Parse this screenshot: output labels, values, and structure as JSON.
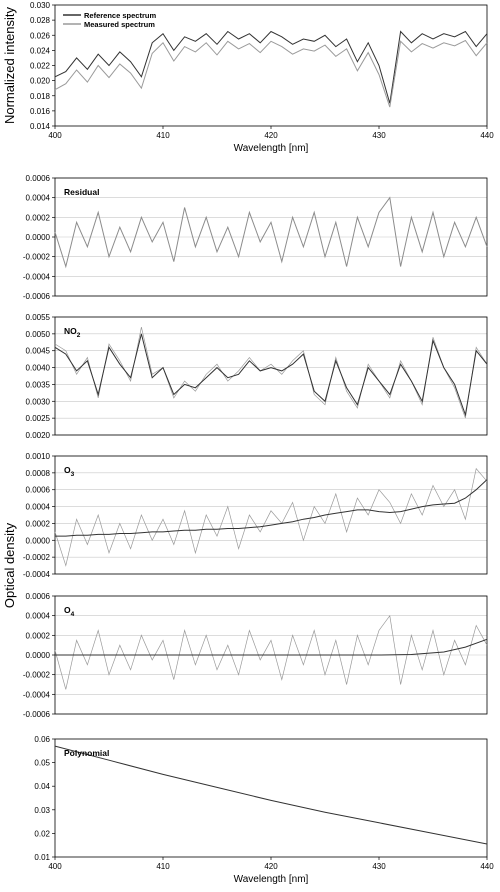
{
  "chart_data": [
    {
      "type": "line",
      "id": "intensity",
      "ylabel": "Normalized intensity",
      "xlabel": "Wavelength [nm]",
      "xlim": [
        400,
        440
      ],
      "ylim": [
        0.014,
        0.03
      ],
      "xticks": [
        400,
        410,
        420,
        430,
        440
      ],
      "xtick_labels": [
        "400",
        "410",
        "420",
        "430",
        "440"
      ],
      "yticks": [
        0.014,
        0.016,
        0.018,
        0.02,
        0.022,
        0.024,
        0.026,
        0.028,
        0.03
      ],
      "ytick_labels": [
        "0.014",
        "0.016",
        "0.018",
        "0.020",
        "0.022",
        "0.024",
        "0.026",
        "0.028",
        "0.030"
      ],
      "grid": false,
      "legend": "top-left",
      "series": [
        {
          "name": "Reference spectrum",
          "color": "#333333",
          "x": [
            400,
            401,
            402,
            403,
            404,
            405,
            406,
            407,
            408,
            409,
            410,
            411,
            412,
            413,
            414,
            415,
            416,
            417,
            418,
            419,
            420,
            421,
            422,
            423,
            424,
            425,
            426,
            427,
            428,
            429,
            430,
            431,
            432,
            433,
            434,
            435,
            436,
            437,
            438,
            439,
            440
          ],
          "y": [
            0.0205,
            0.0212,
            0.023,
            0.0215,
            0.0235,
            0.022,
            0.0238,
            0.0225,
            0.0205,
            0.025,
            0.0262,
            0.024,
            0.0258,
            0.0252,
            0.0262,
            0.0248,
            0.0265,
            0.0255,
            0.0262,
            0.025,
            0.0265,
            0.0258,
            0.0248,
            0.0255,
            0.0252,
            0.026,
            0.0245,
            0.0255,
            0.0225,
            0.025,
            0.022,
            0.017,
            0.0265,
            0.025,
            0.0262,
            0.0255,
            0.0262,
            0.0258,
            0.0265,
            0.0245,
            0.0262
          ]
        },
        {
          "name": "Measured spectrum",
          "color": "#9a9a9a",
          "x": [
            400,
            401,
            402,
            403,
            404,
            405,
            406,
            407,
            408,
            409,
            410,
            411,
            412,
            413,
            414,
            415,
            416,
            417,
            418,
            419,
            420,
            421,
            422,
            423,
            424,
            425,
            426,
            427,
            428,
            429,
            430,
            431,
            432,
            433,
            434,
            435,
            436,
            437,
            438,
            439,
            440
          ],
          "y": [
            0.0188,
            0.0196,
            0.0214,
            0.0198,
            0.022,
            0.0204,
            0.0222,
            0.021,
            0.019,
            0.0236,
            0.025,
            0.0226,
            0.0245,
            0.0238,
            0.025,
            0.0234,
            0.0252,
            0.0242,
            0.0249,
            0.0237,
            0.0252,
            0.0245,
            0.0235,
            0.0242,
            0.0239,
            0.0247,
            0.0232,
            0.0242,
            0.0213,
            0.0237,
            0.0208,
            0.0165,
            0.0252,
            0.0238,
            0.0249,
            0.0243,
            0.025,
            0.0246,
            0.0253,
            0.0233,
            0.025
          ]
        }
      ]
    },
    {
      "type": "line",
      "id": "residual",
      "annotation": "Residual",
      "xlim": [
        400,
        440
      ],
      "ylim": [
        -0.0006,
        0.0006
      ],
      "yticks": [
        -0.0006,
        -0.0004,
        -0.0002,
        0.0,
        0.0002,
        0.0004,
        0.0006
      ],
      "ytick_labels": [
        "-0.0006",
        "-0.0004",
        "-0.0002",
        "0.0000",
        "0.0002",
        "0.0004",
        "0.0006"
      ],
      "grid": true,
      "series": [
        {
          "color": "#8c8c8c",
          "x": [
            400,
            401,
            402,
            403,
            404,
            405,
            406,
            407,
            408,
            409,
            410,
            411,
            412,
            413,
            414,
            415,
            416,
            417,
            418,
            419,
            420,
            421,
            422,
            423,
            424,
            425,
            426,
            427,
            428,
            429,
            430,
            431,
            432,
            433,
            434,
            435,
            436,
            437,
            438,
            439,
            440
          ],
          "y": [
            5e-05,
            -0.0003,
            0.00015,
            -0.0001,
            0.00025,
            -0.0002,
            0.0001,
            -0.00015,
            0.0002,
            -5e-05,
            0.00015,
            -0.00025,
            0.0003,
            -0.0001,
            0.0002,
            -0.00015,
            0.0001,
            -0.0002,
            0.00025,
            -5e-05,
            0.00015,
            -0.00025,
            0.0002,
            -0.0001,
            0.00025,
            -0.0002,
            0.00015,
            -0.0003,
            0.0002,
            -0.0001,
            0.00025,
            0.0004,
            -0.0003,
            0.0002,
            -0.00015,
            0.00025,
            -0.0002,
            0.00015,
            -0.0001,
            0.0002,
            -0.0001
          ]
        }
      ]
    },
    {
      "type": "line",
      "id": "no2",
      "annotation": "NO2",
      "xlim": [
        400,
        440
      ],
      "ylim": [
        0.002,
        0.0055
      ],
      "yticks": [
        0.002,
        0.0025,
        0.003,
        0.0035,
        0.004,
        0.0045,
        0.005,
        0.0055
      ],
      "ytick_labels": [
        "0.0020",
        "0.0025",
        "0.0030",
        "0.0035",
        "0.0040",
        "0.0045",
        "0.0050",
        "0.0055"
      ],
      "grid": true,
      "series": [
        {
          "color": "#9a9a9a",
          "x": [
            400,
            401,
            402,
            403,
            404,
            405,
            406,
            407,
            408,
            409,
            410,
            411,
            412,
            413,
            414,
            415,
            416,
            417,
            418,
            419,
            420,
            421,
            422,
            423,
            424,
            425,
            426,
            427,
            428,
            429,
            430,
            431,
            432,
            433,
            434,
            435,
            436,
            437,
            438,
            439,
            440
          ],
          "y": [
            0.0047,
            0.0045,
            0.0038,
            0.0043,
            0.0031,
            0.0047,
            0.0042,
            0.0036,
            0.0052,
            0.0038,
            0.004,
            0.0031,
            0.0036,
            0.0033,
            0.0038,
            0.0041,
            0.0036,
            0.0039,
            0.0043,
            0.0039,
            0.0041,
            0.0038,
            0.0042,
            0.0045,
            0.0032,
            0.0029,
            0.0043,
            0.0033,
            0.0028,
            0.0041,
            0.0036,
            0.0031,
            0.0042,
            0.0036,
            0.0029,
            0.0049,
            0.004,
            0.0034,
            0.0025,
            0.0046,
            0.0041
          ]
        },
        {
          "color": "#333333",
          "x": [
            400,
            401,
            402,
            403,
            404,
            405,
            406,
            407,
            408,
            409,
            410,
            411,
            412,
            413,
            414,
            415,
            416,
            417,
            418,
            419,
            420,
            421,
            422,
            423,
            424,
            425,
            426,
            427,
            428,
            429,
            430,
            431,
            432,
            433,
            434,
            435,
            436,
            437,
            438,
            439,
            440
          ],
          "y": [
            0.0046,
            0.0044,
            0.0039,
            0.0042,
            0.0032,
            0.0046,
            0.0041,
            0.0037,
            0.005,
            0.0037,
            0.004,
            0.0032,
            0.0035,
            0.0034,
            0.0037,
            0.004,
            0.0037,
            0.0038,
            0.0042,
            0.0039,
            0.004,
            0.0039,
            0.0041,
            0.0044,
            0.0033,
            0.003,
            0.0042,
            0.0034,
            0.0029,
            0.004,
            0.0036,
            0.0032,
            0.0041,
            0.0036,
            0.003,
            0.0048,
            0.004,
            0.0035,
            0.0026,
            0.0045,
            0.0041
          ]
        }
      ]
    },
    {
      "type": "line",
      "id": "o3",
      "annotation": "O3",
      "xlim": [
        400,
        440
      ],
      "ylim": [
        -0.0004,
        0.001
      ],
      "yticks": [
        -0.0004,
        -0.0002,
        0.0,
        0.0002,
        0.0004,
        0.0006,
        0.0008,
        0.001
      ],
      "ytick_labels": [
        "-0.0004",
        "-0.0002",
        "0.0000",
        "0.0002",
        "0.0004",
        "0.0006",
        "0.0008",
        "0.0010"
      ],
      "grid": true,
      "series": [
        {
          "color": "#9a9a9a",
          "x": [
            400,
            401,
            402,
            403,
            404,
            405,
            406,
            407,
            408,
            409,
            410,
            411,
            412,
            413,
            414,
            415,
            416,
            417,
            418,
            419,
            420,
            421,
            422,
            423,
            424,
            425,
            426,
            427,
            428,
            429,
            430,
            431,
            432,
            433,
            434,
            435,
            436,
            437,
            438,
            439,
            440
          ],
          "y": [
            0.0001,
            -0.0003,
            0.00025,
            -5e-05,
            0.0003,
            -0.00015,
            0.0002,
            -0.0001,
            0.0003,
            0.0,
            0.00025,
            -5e-05,
            0.00035,
            -0.00015,
            0.0003,
            5e-05,
            0.0004,
            -0.0001,
            0.0003,
            0.0001,
            0.00035,
            0.0002,
            0.00045,
            0.0,
            0.0004,
            0.0002,
            0.00055,
            0.0001,
            0.0005,
            0.0003,
            0.0006,
            0.00045,
            0.0002,
            0.00055,
            0.0003,
            0.00065,
            0.0004,
            0.0006,
            0.00025,
            0.00085,
            0.0007
          ]
        },
        {
          "color": "#333333",
          "x": [
            400,
            401,
            402,
            403,
            404,
            405,
            406,
            407,
            408,
            409,
            410,
            411,
            412,
            413,
            414,
            415,
            416,
            417,
            418,
            419,
            420,
            421,
            422,
            423,
            424,
            425,
            426,
            427,
            428,
            429,
            430,
            431,
            432,
            433,
            434,
            435,
            436,
            437,
            438,
            439,
            440
          ],
          "y": [
            5e-05,
            5e-05,
            6e-05,
            6e-05,
            7e-05,
            7e-05,
            8e-05,
            8e-05,
            9e-05,
            0.0001,
            0.0001,
            0.00011,
            0.00012,
            0.00012,
            0.00013,
            0.00013,
            0.00014,
            0.00014,
            0.00015,
            0.00016,
            0.00018,
            0.0002,
            0.00022,
            0.00025,
            0.00027,
            0.0003,
            0.00032,
            0.00034,
            0.00036,
            0.00036,
            0.00034,
            0.00033,
            0.00034,
            0.00037,
            0.0004,
            0.00042,
            0.00043,
            0.00044,
            0.0005,
            0.0006,
            0.00072
          ]
        }
      ]
    },
    {
      "type": "line",
      "id": "o4",
      "annotation": "O4",
      "xlim": [
        400,
        440
      ],
      "ylim": [
        -0.0006,
        0.0006
      ],
      "yticks": [
        -0.0006,
        -0.0004,
        -0.0002,
        0.0,
        0.0002,
        0.0004,
        0.0006
      ],
      "ytick_labels": [
        "-0.0006",
        "-0.0004",
        "-0.0002",
        "0.0000",
        "0.0002",
        "0.0004",
        "0.0006"
      ],
      "grid": true,
      "series": [
        {
          "color": "#9a9a9a",
          "x": [
            400,
            401,
            402,
            403,
            404,
            405,
            406,
            407,
            408,
            409,
            410,
            411,
            412,
            413,
            414,
            415,
            416,
            417,
            418,
            419,
            420,
            421,
            422,
            423,
            424,
            425,
            426,
            427,
            428,
            429,
            430,
            431,
            432,
            433,
            434,
            435,
            436,
            437,
            438,
            439,
            440
          ],
          "y": [
            5e-05,
            -0.00035,
            0.00015,
            -0.0001,
            0.00025,
            -0.0002,
            0.0001,
            -0.00015,
            0.0002,
            -5e-05,
            0.00015,
            -0.00025,
            0.00025,
            -0.0001,
            0.0002,
            -0.00015,
            0.0001,
            -0.0002,
            0.00025,
            -5e-05,
            0.00015,
            -0.00025,
            0.0002,
            -0.0001,
            0.00025,
            -0.0002,
            0.00015,
            -0.0003,
            0.0002,
            -0.0001,
            0.00025,
            0.0004,
            -0.0003,
            0.0002,
            -0.00015,
            0.00025,
            -0.0002,
            0.00015,
            -0.0001,
            0.0003,
            0.0001
          ]
        },
        {
          "color": "#333333",
          "x": [
            400,
            405,
            410,
            415,
            420,
            425,
            430,
            433,
            436,
            438,
            440
          ],
          "y": [
            0.0,
            0.0,
            0.0,
            0.0,
            0.0,
            0.0,
            0.0,
            5e-06,
            3e-05,
            8e-05,
            0.00016
          ]
        }
      ]
    },
    {
      "type": "line",
      "id": "polynomial",
      "annotation": "Polynomial",
      "xlabel": "Wavelength [nm]",
      "xlim": [
        400,
        440
      ],
      "ylim": [
        0.01,
        0.06
      ],
      "xticks": [
        400,
        410,
        420,
        430,
        440
      ],
      "xtick_labels": [
        "400",
        "410",
        "420",
        "430",
        "440"
      ],
      "yticks": [
        0.01,
        0.02,
        0.03,
        0.04,
        0.05,
        0.06
      ],
      "ytick_labels": [
        "0.01",
        "0.02",
        "0.03",
        "0.04",
        "0.05",
        "0.06"
      ],
      "grid": false,
      "series": [
        {
          "color": "#333333",
          "x": [
            400,
            405,
            410,
            415,
            420,
            425,
            430,
            435,
            440
          ],
          "y": [
            0.057,
            0.051,
            0.045,
            0.0395,
            0.034,
            0.029,
            0.0245,
            0.02,
            0.0155
          ]
        }
      ]
    }
  ],
  "shared_ylabel": "Optical density"
}
